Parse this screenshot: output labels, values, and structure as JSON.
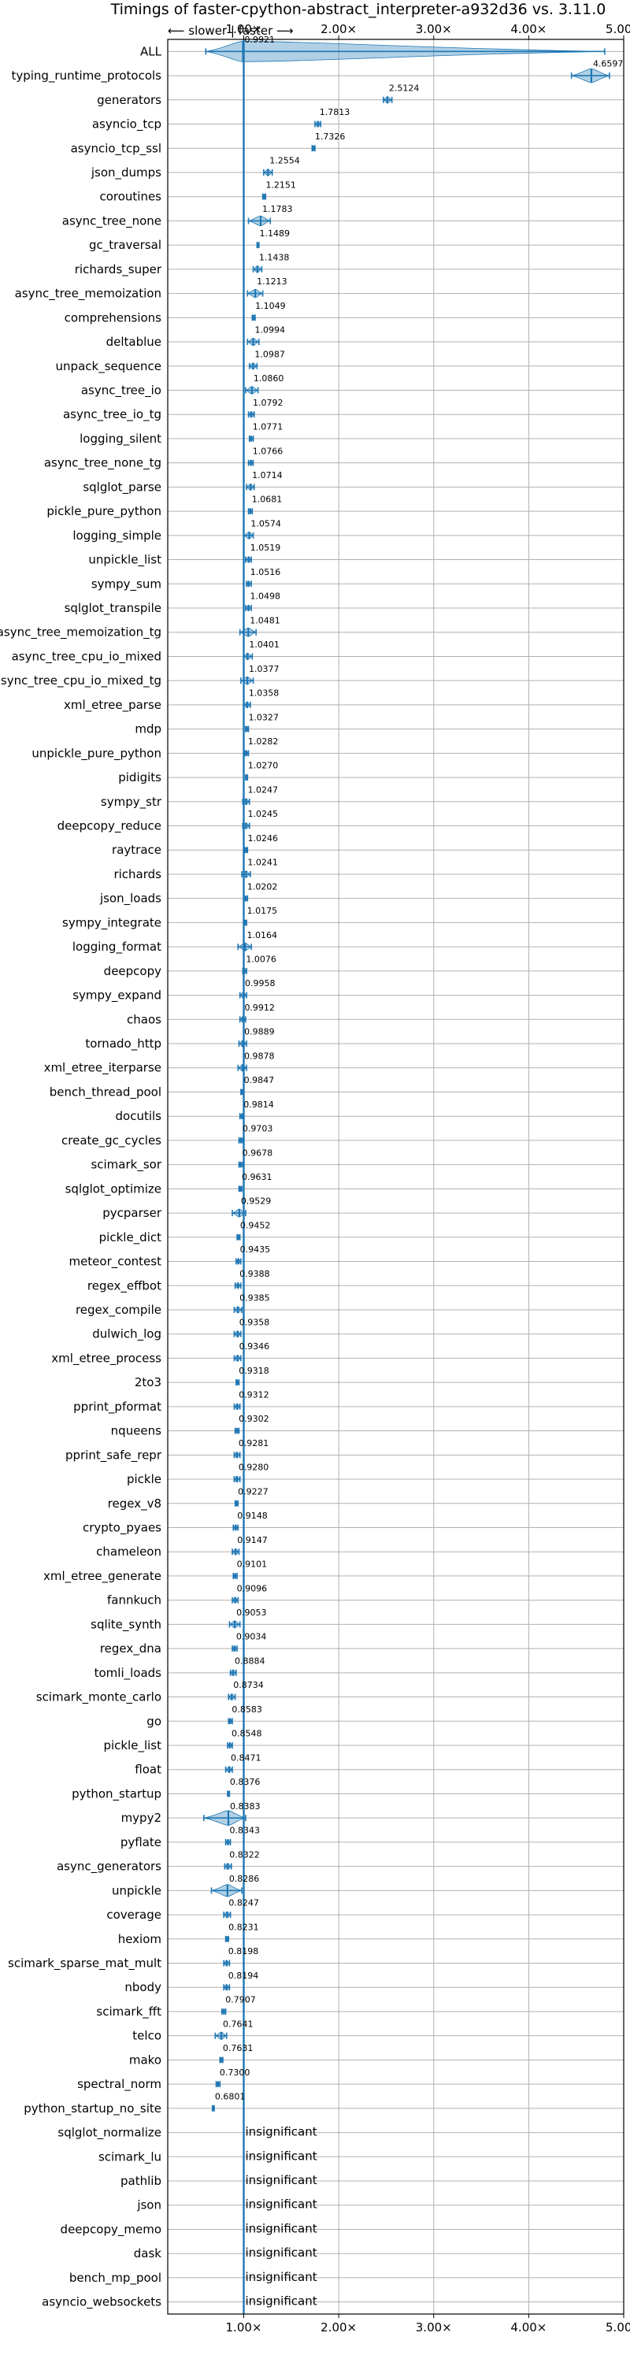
{
  "chart_data": {
    "type": "violin",
    "title": "Timings of faster-cpython-abstract_interpreter-a932d36 vs. 3.11.0",
    "xlabel": "",
    "ylabel": "",
    "xlim": [
      0.2,
      5.0
    ],
    "x_ticks": [
      1,
      2,
      3,
      4,
      5
    ],
    "x_tick_labels": [
      "1.00×",
      "2.00×",
      "3.00×",
      "4.00×",
      "5.00×"
    ],
    "direction_hint": "⟵ slower | faster ⟶",
    "grid": true,
    "reference_line": 1.0,
    "benchmarks": [
      {
        "name": "ALL",
        "value": 0.9921,
        "label": "0.9921",
        "spread": [
          0.6,
          4.8
        ]
      },
      {
        "name": "typing_runtime_protocols",
        "value": 4.6597,
        "label": "4.6597",
        "spread": [
          4.45,
          4.85
        ]
      },
      {
        "name": "generators",
        "value": 2.5124,
        "label": "2.5124",
        "spread": [
          2.47,
          2.56
        ]
      },
      {
        "name": "asyncio_tcp",
        "value": 1.7813,
        "label": "1.7813",
        "spread": [
          1.75,
          1.81
        ]
      },
      {
        "name": "asyncio_tcp_ssl",
        "value": 1.7326,
        "label": "1.7326",
        "spread": [
          1.72,
          1.75
        ]
      },
      {
        "name": "json_dumps",
        "value": 1.2554,
        "label": "1.2554",
        "spread": [
          1.21,
          1.3
        ]
      },
      {
        "name": "coroutines",
        "value": 1.2151,
        "label": "1.2151",
        "spread": [
          1.2,
          1.23
        ]
      },
      {
        "name": "async_tree_none",
        "value": 1.1783,
        "label": "1.1783",
        "spread": [
          1.05,
          1.28
        ]
      },
      {
        "name": "gc_traversal",
        "value": 1.1489,
        "label": "1.1489",
        "spread": [
          1.14,
          1.16
        ]
      },
      {
        "name": "richards_super",
        "value": 1.1438,
        "label": "1.1438",
        "spread": [
          1.1,
          1.19
        ]
      },
      {
        "name": "async_tree_memoization",
        "value": 1.1213,
        "label": "1.1213",
        "spread": [
          1.04,
          1.2
        ]
      },
      {
        "name": "comprehensions",
        "value": 1.1049,
        "label": "1.1049",
        "spread": [
          1.09,
          1.12
        ]
      },
      {
        "name": "deltablue",
        "value": 1.0994,
        "label": "1.0994",
        "spread": [
          1.04,
          1.16
        ]
      },
      {
        "name": "unpack_sequence",
        "value": 1.0987,
        "label": "1.0987",
        "spread": [
          1.06,
          1.14
        ]
      },
      {
        "name": "async_tree_io",
        "value": 1.086,
        "label": "1.0860",
        "spread": [
          1.02,
          1.15
        ]
      },
      {
        "name": "async_tree_io_tg",
        "value": 1.0792,
        "label": "1.0792",
        "spread": [
          1.05,
          1.11
        ]
      },
      {
        "name": "logging_silent",
        "value": 1.0771,
        "label": "1.0771",
        "spread": [
          1.06,
          1.1
        ]
      },
      {
        "name": "async_tree_none_tg",
        "value": 1.0766,
        "label": "1.0766",
        "spread": [
          1.05,
          1.1
        ]
      },
      {
        "name": "sqlglot_parse",
        "value": 1.0714,
        "label": "1.0714",
        "spread": [
          1.03,
          1.11
        ]
      },
      {
        "name": "pickle_pure_python",
        "value": 1.0681,
        "label": "1.0681",
        "spread": [
          1.05,
          1.09
        ]
      },
      {
        "name": "logging_simple",
        "value": 1.0574,
        "label": "1.0574",
        "spread": [
          1.0,
          1.1
        ]
      },
      {
        "name": "unpickle_list",
        "value": 1.0519,
        "label": "1.0519",
        "spread": [
          1.02,
          1.08
        ]
      },
      {
        "name": "sympy_sum",
        "value": 1.0516,
        "label": "1.0516",
        "spread": [
          1.03,
          1.08
        ]
      },
      {
        "name": "sqlglot_transpile",
        "value": 1.0498,
        "label": "1.0498",
        "spread": [
          1.02,
          1.08
        ]
      },
      {
        "name": "async_tree_memoization_tg",
        "value": 1.0481,
        "label": "1.0481",
        "spread": [
          0.96,
          1.13
        ]
      },
      {
        "name": "async_tree_cpu_io_mixed",
        "value": 1.0401,
        "label": "1.0401",
        "spread": [
          1.0,
          1.09
        ]
      },
      {
        "name": "async_tree_cpu_io_mixed_tg",
        "value": 1.0377,
        "label": "1.0377",
        "spread": [
          0.97,
          1.1
        ]
      },
      {
        "name": "xml_etree_parse",
        "value": 1.0358,
        "label": "1.0358",
        "spread": [
          1.0,
          1.07
        ]
      },
      {
        "name": "mdp",
        "value": 1.0327,
        "label": "1.0327",
        "spread": [
          1.02,
          1.05
        ]
      },
      {
        "name": "unpickle_pure_python",
        "value": 1.0282,
        "label": "1.0282",
        "spread": [
          1.01,
          1.05
        ]
      },
      {
        "name": "pidigits",
        "value": 1.027,
        "label": "1.0270",
        "spread": [
          1.02,
          1.04
        ]
      },
      {
        "name": "sympy_str",
        "value": 1.0247,
        "label": "1.0247",
        "spread": [
          0.99,
          1.06
        ]
      },
      {
        "name": "deepcopy_reduce",
        "value": 1.0245,
        "label": "1.0245",
        "spread": [
          0.99,
          1.06
        ]
      },
      {
        "name": "raytrace",
        "value": 1.0246,
        "label": "1.0246",
        "spread": [
          1.01,
          1.04
        ]
      },
      {
        "name": "richards",
        "value": 1.0241,
        "label": "1.0241",
        "spread": [
          0.98,
          1.07
        ]
      },
      {
        "name": "json_loads",
        "value": 1.0202,
        "label": "1.0202",
        "spread": [
          1.0,
          1.04
        ]
      },
      {
        "name": "sympy_integrate",
        "value": 1.0175,
        "label": "1.0175",
        "spread": [
          1.0,
          1.03
        ]
      },
      {
        "name": "logging_format",
        "value": 1.0164,
        "label": "1.0164",
        "spread": [
          0.94,
          1.08
        ]
      },
      {
        "name": "deepcopy",
        "value": 1.0076,
        "label": "1.0076",
        "spread": [
          0.99,
          1.03
        ]
      },
      {
        "name": "sympy_expand",
        "value": 0.9958,
        "label": "0.9958",
        "spread": [
          0.96,
          1.03
        ]
      },
      {
        "name": "chaos",
        "value": 0.9912,
        "label": "0.9912",
        "spread": [
          0.96,
          1.02
        ]
      },
      {
        "name": "tornado_http",
        "value": 0.9889,
        "label": "0.9889",
        "spread": [
          0.95,
          1.03
        ]
      },
      {
        "name": "xml_etree_iterparse",
        "value": 0.9878,
        "label": "0.9878",
        "spread": [
          0.94,
          1.03
        ]
      },
      {
        "name": "bench_thread_pool",
        "value": 0.9847,
        "label": "0.9847",
        "spread": [
          0.97,
          1.0
        ]
      },
      {
        "name": "docutils",
        "value": 0.9814,
        "label": "0.9814",
        "spread": [
          0.96,
          1.0
        ]
      },
      {
        "name": "create_gc_cycles",
        "value": 0.9703,
        "label": "0.9703",
        "spread": [
          0.95,
          0.99
        ]
      },
      {
        "name": "scimark_sor",
        "value": 0.9678,
        "label": "0.9678",
        "spread": [
          0.95,
          0.99
        ]
      },
      {
        "name": "sqlglot_optimize",
        "value": 0.9631,
        "label": "0.9631",
        "spread": [
          0.95,
          0.98
        ]
      },
      {
        "name": "pycparser",
        "value": 0.9529,
        "label": "0.9529",
        "spread": [
          0.88,
          1.02
        ]
      },
      {
        "name": "pickle_dict",
        "value": 0.9452,
        "label": "0.9452",
        "spread": [
          0.93,
          0.96
        ]
      },
      {
        "name": "meteor_contest",
        "value": 0.9435,
        "label": "0.9435",
        "spread": [
          0.92,
          0.97
        ]
      },
      {
        "name": "regex_effbot",
        "value": 0.9388,
        "label": "0.9388",
        "spread": [
          0.91,
          0.97
        ]
      },
      {
        "name": "regex_compile",
        "value": 0.9385,
        "label": "0.9385",
        "spread": [
          0.9,
          0.98
        ]
      },
      {
        "name": "dulwich_log",
        "value": 0.9358,
        "label": "0.9358",
        "spread": [
          0.9,
          0.97
        ]
      },
      {
        "name": "xml_etree_process",
        "value": 0.9346,
        "label": "0.9346",
        "spread": [
          0.9,
          0.97
        ]
      },
      {
        "name": "2to3",
        "value": 0.9318,
        "label": "0.9318",
        "spread": [
          0.92,
          0.95
        ]
      },
      {
        "name": "pprint_pformat",
        "value": 0.9312,
        "label": "0.9312",
        "spread": [
          0.9,
          0.96
        ]
      },
      {
        "name": "nqueens",
        "value": 0.9302,
        "label": "0.9302",
        "spread": [
          0.91,
          0.95
        ]
      },
      {
        "name": "pprint_safe_repr",
        "value": 0.9281,
        "label": "0.9281",
        "spread": [
          0.9,
          0.96
        ]
      },
      {
        "name": "pickle",
        "value": 0.928,
        "label": "0.9280",
        "spread": [
          0.9,
          0.96
        ]
      },
      {
        "name": "regex_v8",
        "value": 0.9227,
        "label": "0.9227",
        "spread": [
          0.91,
          0.94
        ]
      },
      {
        "name": "crypto_pyaes",
        "value": 0.9148,
        "label": "0.9148",
        "spread": [
          0.89,
          0.94
        ]
      },
      {
        "name": "chameleon",
        "value": 0.9147,
        "label": "0.9147",
        "spread": [
          0.88,
          0.95
        ]
      },
      {
        "name": "xml_etree_generate",
        "value": 0.9101,
        "label": "0.9101",
        "spread": [
          0.89,
          0.93
        ]
      },
      {
        "name": "fannkuch",
        "value": 0.9096,
        "label": "0.9096",
        "spread": [
          0.88,
          0.94
        ]
      },
      {
        "name": "sqlite_synth",
        "value": 0.9053,
        "label": "0.9053",
        "spread": [
          0.85,
          0.96
        ]
      },
      {
        "name": "regex_dna",
        "value": 0.9034,
        "label": "0.9034",
        "spread": [
          0.88,
          0.93
        ]
      },
      {
        "name": "tomli_loads",
        "value": 0.8884,
        "label": "0.8884",
        "spread": [
          0.86,
          0.92
        ]
      },
      {
        "name": "scimark_monte_carlo",
        "value": 0.8734,
        "label": "0.8734",
        "spread": [
          0.84,
          0.91
        ]
      },
      {
        "name": "go",
        "value": 0.8583,
        "label": "0.8583",
        "spread": [
          0.84,
          0.88
        ]
      },
      {
        "name": "pickle_list",
        "value": 0.8548,
        "label": "0.8548",
        "spread": [
          0.83,
          0.88
        ]
      },
      {
        "name": "float",
        "value": 0.8471,
        "label": "0.8471",
        "spread": [
          0.81,
          0.88
        ]
      },
      {
        "name": "python_startup",
        "value": 0.8376,
        "label": "0.8376",
        "spread": [
          0.83,
          0.85
        ]
      },
      {
        "name": "mypy2",
        "value": 0.8383,
        "label": "0.8383",
        "spread": [
          0.58,
          1.02
        ]
      },
      {
        "name": "pyflate",
        "value": 0.8343,
        "label": "0.8343",
        "spread": [
          0.81,
          0.86
        ]
      },
      {
        "name": "async_generators",
        "value": 0.8322,
        "label": "0.8322",
        "spread": [
          0.8,
          0.87
        ]
      },
      {
        "name": "unpickle",
        "value": 0.8286,
        "label": "0.8286",
        "spread": [
          0.66,
          0.98
        ]
      },
      {
        "name": "coverage",
        "value": 0.8247,
        "label": "0.8247",
        "spread": [
          0.79,
          0.86
        ]
      },
      {
        "name": "hexiom",
        "value": 0.8231,
        "label": "0.8231",
        "spread": [
          0.81,
          0.84
        ]
      },
      {
        "name": "scimark_sparse_mat_mult",
        "value": 0.8198,
        "label": "0.8198",
        "spread": [
          0.79,
          0.85
        ]
      },
      {
        "name": "nbody",
        "value": 0.8194,
        "label": "0.8194",
        "spread": [
          0.79,
          0.85
        ]
      },
      {
        "name": "scimark_fft",
        "value": 0.7907,
        "label": "0.7907",
        "spread": [
          0.77,
          0.81
        ]
      },
      {
        "name": "telco",
        "value": 0.7641,
        "label": "0.7641",
        "spread": [
          0.7,
          0.82
        ]
      },
      {
        "name": "mako",
        "value": 0.7631,
        "label": "0.7631",
        "spread": [
          0.75,
          0.78
        ]
      },
      {
        "name": "spectral_norm",
        "value": 0.73,
        "label": "0.7300",
        "spread": [
          0.71,
          0.75
        ]
      },
      {
        "name": "python_startup_no_site",
        "value": 0.6801,
        "label": "0.6801",
        "spread": [
          0.67,
          0.69
        ]
      },
      {
        "name": "sqlglot_normalize",
        "value": null,
        "label": "insignificant"
      },
      {
        "name": "scimark_lu",
        "value": null,
        "label": "insignificant"
      },
      {
        "name": "pathlib",
        "value": null,
        "label": "insignificant"
      },
      {
        "name": "json",
        "value": null,
        "label": "insignificant"
      },
      {
        "name": "deepcopy_memo",
        "value": null,
        "label": "insignificant"
      },
      {
        "name": "dask",
        "value": null,
        "label": "insignificant"
      },
      {
        "name": "bench_mp_pool",
        "value": null,
        "label": "insignificant"
      },
      {
        "name": "asyncio_websockets",
        "value": null,
        "label": "insignificant"
      }
    ]
  },
  "colors": {
    "series": "#1f77b4",
    "median_red": "#d62728",
    "grid": "#b0b0b0"
  }
}
